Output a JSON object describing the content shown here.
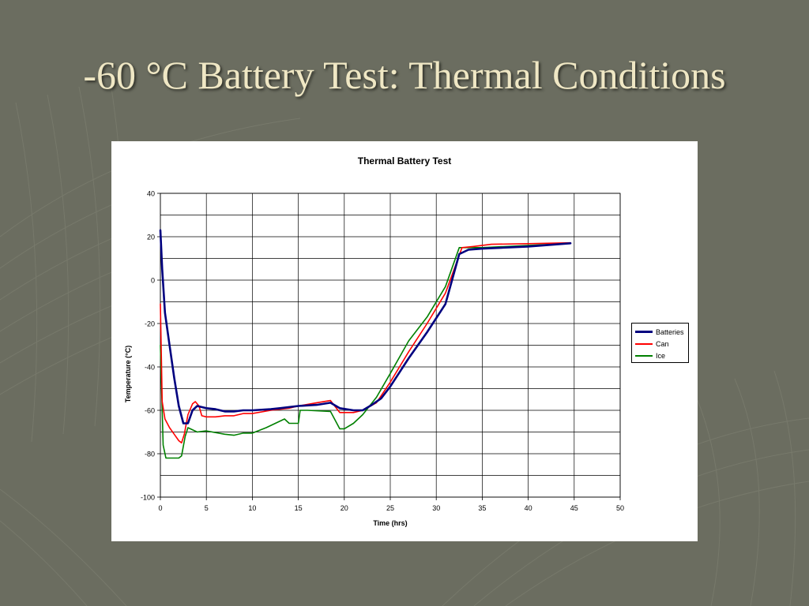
{
  "slide": {
    "title": "-60 °C Battery Test: Thermal Conditions"
  },
  "colors": {
    "background": "#6b6d60",
    "title_text": "#efe7c4",
    "panel": "#ffffff"
  },
  "chart_data": {
    "type": "line",
    "title": "Thermal Battery Test",
    "xlabel": "Time (hrs)",
    "ylabel": "Temperature (°C)",
    "xlim": [
      0,
      50
    ],
    "ylim": [
      -100,
      40
    ],
    "xticks": [
      0,
      5,
      10,
      15,
      20,
      25,
      30,
      35,
      40,
      45,
      50
    ],
    "yticks": [
      -100,
      -80,
      -60,
      -40,
      -20,
      0,
      20,
      40
    ],
    "grid": true,
    "legend_position": "right",
    "series": [
      {
        "name": "Batteries",
        "color": "#00007f",
        "points": [
          [
            0,
            23
          ],
          [
            0.2,
            5
          ],
          [
            0.5,
            -15
          ],
          [
            1,
            -30
          ],
          [
            1.5,
            -45
          ],
          [
            2,
            -58
          ],
          [
            2.5,
            -66
          ],
          [
            3,
            -66
          ],
          [
            3.5,
            -60
          ],
          [
            4,
            -58
          ],
          [
            5,
            -59
          ],
          [
            6,
            -59.5
          ],
          [
            7,
            -60.5
          ],
          [
            8,
            -60.5
          ],
          [
            9,
            -60
          ],
          [
            10,
            -60
          ],
          [
            12,
            -59.5
          ],
          [
            13,
            -59
          ],
          [
            15,
            -58
          ],
          [
            17,
            -57.5
          ],
          [
            18.5,
            -56.5
          ],
          [
            19.5,
            -59
          ],
          [
            21,
            -60
          ],
          [
            22,
            -60
          ],
          [
            23,
            -57.5
          ],
          [
            24,
            -54.5
          ],
          [
            25,
            -49
          ],
          [
            27,
            -36
          ],
          [
            29,
            -24
          ],
          [
            31,
            -11
          ],
          [
            32.5,
            12
          ],
          [
            33.5,
            14
          ],
          [
            35,
            14.5
          ],
          [
            40,
            15.5
          ],
          [
            44.6,
            17
          ]
        ]
      },
      {
        "name": "Can",
        "color": "#ff0000",
        "points": [
          [
            0,
            -11
          ],
          [
            0.2,
            -56
          ],
          [
            0.5,
            -64
          ],
          [
            1,
            -68
          ],
          [
            1.5,
            -71
          ],
          [
            2,
            -74
          ],
          [
            2.3,
            -75
          ],
          [
            2.6,
            -71
          ],
          [
            3,
            -62
          ],
          [
            3.5,
            -57
          ],
          [
            3.8,
            -56
          ],
          [
            4.2,
            -58
          ],
          [
            4.5,
            -62.5
          ],
          [
            5,
            -63
          ],
          [
            6,
            -63
          ],
          [
            7,
            -62.5
          ],
          [
            8,
            -62.5
          ],
          [
            9,
            -61.5
          ],
          [
            10,
            -61.5
          ],
          [
            12,
            -60
          ],
          [
            14,
            -59
          ],
          [
            15,
            -58
          ],
          [
            17,
            -56.5
          ],
          [
            18.5,
            -55.5
          ],
          [
            19.5,
            -61
          ],
          [
            21,
            -61
          ],
          [
            22,
            -60
          ],
          [
            23.5,
            -56.5
          ],
          [
            25,
            -47
          ],
          [
            27,
            -33
          ],
          [
            29,
            -20
          ],
          [
            31,
            -6
          ],
          [
            32.8,
            15
          ],
          [
            34,
            15.5
          ],
          [
            36,
            16.5
          ],
          [
            40,
            16.8
          ],
          [
            44.6,
            17.2
          ]
        ]
      },
      {
        "name": "Ice",
        "color": "#008000",
        "points": [
          [
            0,
            -30
          ],
          [
            0.2,
            -60
          ],
          [
            0.3,
            -76
          ],
          [
            0.6,
            -82
          ],
          [
            1,
            -82
          ],
          [
            2,
            -82
          ],
          [
            2.3,
            -81
          ],
          [
            2.7,
            -72
          ],
          [
            3,
            -68
          ],
          [
            4,
            -70
          ],
          [
            5,
            -69.5
          ],
          [
            7,
            -71
          ],
          [
            8,
            -71.5
          ],
          [
            9,
            -70.5
          ],
          [
            10,
            -70.5
          ],
          [
            11.5,
            -68
          ],
          [
            13.5,
            -64
          ],
          [
            14,
            -66
          ],
          [
            15,
            -66
          ],
          [
            15.2,
            -60
          ],
          [
            16,
            -60
          ],
          [
            18.5,
            -60.5
          ],
          [
            19.5,
            -68.5
          ],
          [
            20,
            -68.5
          ],
          [
            21,
            -66
          ],
          [
            22,
            -62
          ],
          [
            23.5,
            -54
          ],
          [
            25,
            -43
          ],
          [
            27,
            -28
          ],
          [
            29,
            -17
          ],
          [
            31,
            -3
          ],
          [
            32.5,
            15
          ],
          [
            33.5,
            15
          ],
          [
            35,
            15
          ],
          [
            40,
            16
          ],
          [
            44.6,
            17
          ]
        ]
      }
    ]
  }
}
